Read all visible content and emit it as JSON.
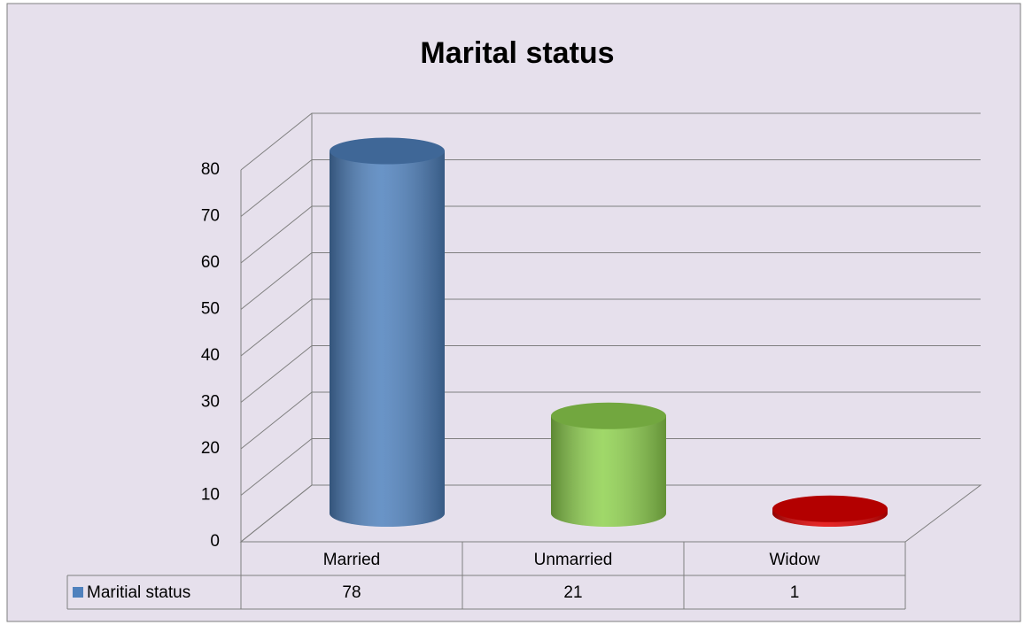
{
  "chart_data": {
    "type": "bar",
    "title": "Marital status",
    "categories": [
      "Married",
      "Unmarried",
      "Widow"
    ],
    "series": [
      {
        "name": "Maritial status",
        "color": "#4f81bd",
        "colors": [
          "#4f81bd",
          "#8fd14f",
          "#e00000"
        ],
        "values": [
          78,
          21,
          1
        ]
      }
    ],
    "ylim": [
      0,
      80
    ],
    "yticks": [
      0,
      10,
      20,
      30,
      40,
      50,
      60,
      70,
      80
    ],
    "grid": true,
    "data_table": true
  }
}
